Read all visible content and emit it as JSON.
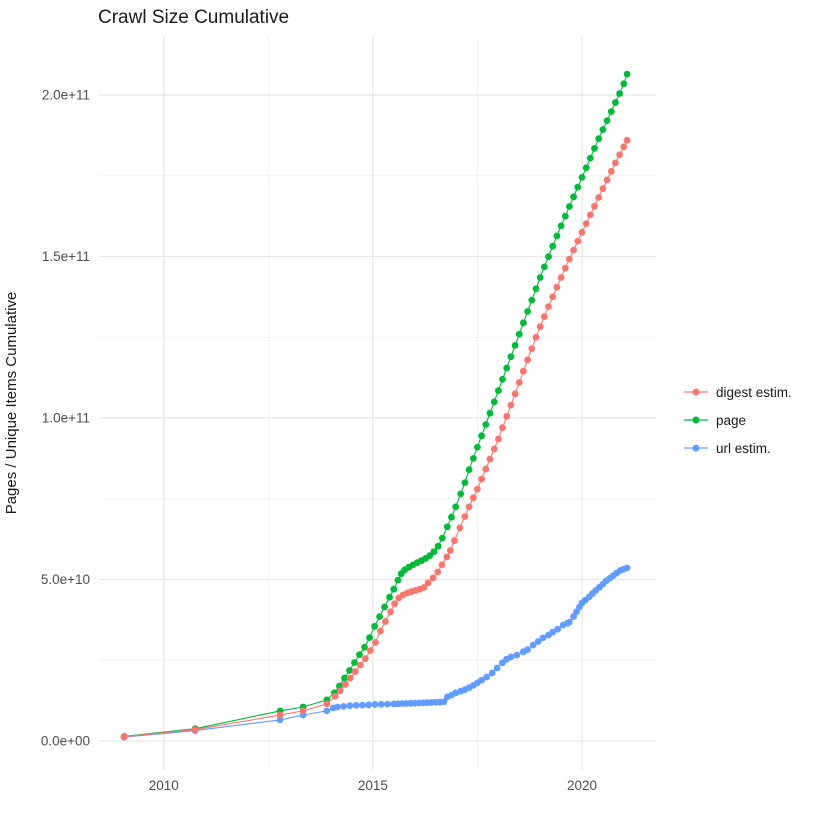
{
  "title": "Crawl Size Cumulative",
  "chart_data": {
    "type": "scatter",
    "title": "Crawl Size Cumulative",
    "xlabel": "",
    "ylabel": "Pages / Unique Items Cumulative",
    "value_unit": "1e9 (billions of pages / unique items)",
    "x_domain": [
      2008.45,
      2021.77
    ],
    "y_domain": [
      -9,
      218.3
    ],
    "x_ticks": [
      {
        "value": 2010,
        "label": "2010"
      },
      {
        "value": 2015,
        "label": "2015"
      },
      {
        "value": 2020,
        "label": "2020"
      }
    ],
    "x_minor": [
      2012.5,
      2017.5
    ],
    "y_ticks": [
      {
        "value": 0,
        "label": "0.0e+00"
      },
      {
        "value": 50,
        "label": "5.0e+10"
      },
      {
        "value": 100,
        "label": "1.0e+11"
      },
      {
        "value": 150,
        "label": "1.5e+11"
      },
      {
        "value": 200,
        "label": "2.0e+11"
      }
    ],
    "y_minor": [
      25,
      75,
      125,
      175
    ],
    "grid": {
      "major_color": "#E5E5E5",
      "minor_color": "#EFEFEF"
    },
    "legend_position": "right",
    "text_colors": {
      "title": "#1a1a1a",
      "ticks": "#4D4D4D",
      "axis_title": "#1a1a1a"
    },
    "series": [
      {
        "name": "digest estim.",
        "color": "#F8766D",
        "points": [
          [
            2009.05,
            1.3
          ],
          [
            2010.75,
            3.5
          ],
          [
            2012.78,
            8.0
          ],
          [
            2013.33,
            9.3
          ],
          [
            2013.9,
            11.5
          ],
          [
            2014.1,
            13.9
          ],
          [
            2014.22,
            15.5
          ],
          [
            2014.34,
            17.5
          ],
          [
            2014.46,
            19.5
          ],
          [
            2014.58,
            21.5
          ],
          [
            2014.7,
            23.5
          ],
          [
            2014.82,
            25.5
          ],
          [
            2014.94,
            28.0
          ],
          [
            2015.06,
            30.5
          ],
          [
            2015.18,
            34.0
          ],
          [
            2015.3,
            37.0
          ],
          [
            2015.42,
            40.0
          ],
          [
            2015.52,
            42.5
          ],
          [
            2015.62,
            44.3
          ],
          [
            2015.72,
            45.2
          ],
          [
            2015.82,
            45.8
          ],
          [
            2015.92,
            46.2
          ],
          [
            2016.02,
            46.6
          ],
          [
            2016.12,
            47.0
          ],
          [
            2016.22,
            47.5
          ],
          [
            2016.32,
            48.9
          ],
          [
            2016.44,
            50.5
          ],
          [
            2016.55,
            52.3
          ],
          [
            2016.65,
            54.5
          ],
          [
            2016.77,
            57.0
          ],
          [
            2016.85,
            59.0
          ],
          [
            2016.95,
            62.0
          ],
          [
            2017.08,
            66.0
          ],
          [
            2017.2,
            69.5
          ],
          [
            2017.3,
            72.5
          ],
          [
            2017.4,
            75.3
          ],
          [
            2017.5,
            78.0
          ],
          [
            2017.6,
            81.1
          ],
          [
            2017.7,
            84.2
          ],
          [
            2017.8,
            87.3
          ],
          [
            2017.9,
            90.4
          ],
          [
            2018.0,
            93.5
          ],
          [
            2018.1,
            97.0
          ],
          [
            2018.2,
            100.5
          ],
          [
            2018.3,
            104.0
          ],
          [
            2018.4,
            107.5
          ],
          [
            2018.5,
            111.0
          ],
          [
            2018.6,
            114.5
          ],
          [
            2018.7,
            118.0
          ],
          [
            2018.8,
            121.5
          ],
          [
            2018.9,
            125.0
          ],
          [
            2019.0,
            128.3
          ],
          [
            2019.1,
            131.4
          ],
          [
            2019.2,
            134.5
          ],
          [
            2019.3,
            137.5
          ],
          [
            2019.4,
            140.5
          ],
          [
            2019.5,
            143.5
          ],
          [
            2019.6,
            146.4
          ],
          [
            2019.7,
            149.2
          ],
          [
            2019.8,
            152.0
          ],
          [
            2019.9,
            154.8
          ],
          [
            2020.0,
            157.5
          ],
          [
            2020.1,
            160.2
          ],
          [
            2020.2,
            162.9
          ],
          [
            2020.3,
            165.6
          ],
          [
            2020.4,
            168.3
          ],
          [
            2020.5,
            171.0
          ],
          [
            2020.6,
            173.7
          ],
          [
            2020.7,
            176.4
          ],
          [
            2020.8,
            179.0
          ],
          [
            2020.9,
            181.5
          ],
          [
            2021.0,
            184.0
          ],
          [
            2021.08,
            186.0
          ]
        ]
      },
      {
        "name": "page",
        "color": "#00BA38",
        "points": [
          [
            2009.05,
            1.4
          ],
          [
            2010.75,
            3.8
          ],
          [
            2012.78,
            9.3
          ],
          [
            2013.33,
            10.5
          ],
          [
            2013.9,
            12.7
          ],
          [
            2014.08,
            14.9
          ],
          [
            2014.2,
            17.0
          ],
          [
            2014.32,
            19.5
          ],
          [
            2014.44,
            21.8
          ],
          [
            2014.56,
            24.3
          ],
          [
            2014.68,
            26.7
          ],
          [
            2014.8,
            29.0
          ],
          [
            2014.92,
            32.0
          ],
          [
            2015.04,
            35.5
          ],
          [
            2015.16,
            38.5
          ],
          [
            2015.28,
            41.5
          ],
          [
            2015.4,
            44.5
          ],
          [
            2015.5,
            47.0
          ],
          [
            2015.6,
            49.8
          ],
          [
            2015.68,
            51.8
          ],
          [
            2015.76,
            53.0
          ],
          [
            2015.86,
            53.8
          ],
          [
            2015.96,
            54.5
          ],
          [
            2016.06,
            55.2
          ],
          [
            2016.16,
            55.8
          ],
          [
            2016.26,
            56.5
          ],
          [
            2016.36,
            57.4
          ],
          [
            2016.46,
            58.6
          ],
          [
            2016.56,
            60.3
          ],
          [
            2016.66,
            62.8
          ],
          [
            2016.78,
            66.3
          ],
          [
            2016.88,
            69.3
          ],
          [
            2016.98,
            72.5
          ],
          [
            2017.1,
            76.5
          ],
          [
            2017.2,
            80.0
          ],
          [
            2017.3,
            84.0
          ],
          [
            2017.4,
            87.5
          ],
          [
            2017.5,
            91.0
          ],
          [
            2017.6,
            94.5
          ],
          [
            2017.7,
            98.0
          ],
          [
            2017.8,
            101.5
          ],
          [
            2017.9,
            105.0
          ],
          [
            2018.0,
            108.5
          ],
          [
            2018.1,
            112.0
          ],
          [
            2018.2,
            115.5
          ],
          [
            2018.3,
            119.0
          ],
          [
            2018.4,
            122.5
          ],
          [
            2018.5,
            126.0
          ],
          [
            2018.6,
            129.5
          ],
          [
            2018.7,
            133.0
          ],
          [
            2018.8,
            136.5
          ],
          [
            2018.9,
            140.0
          ],
          [
            2019.0,
            143.5
          ],
          [
            2019.1,
            146.8
          ],
          [
            2019.2,
            150.0
          ],
          [
            2019.3,
            153.2
          ],
          [
            2019.4,
            156.4
          ],
          [
            2019.5,
            159.5
          ],
          [
            2019.6,
            162.5
          ],
          [
            2019.7,
            165.5
          ],
          [
            2019.8,
            168.5
          ],
          [
            2019.9,
            171.5
          ],
          [
            2020.0,
            174.5
          ],
          [
            2020.1,
            177.5
          ],
          [
            2020.2,
            180.5
          ],
          [
            2020.3,
            183.5
          ],
          [
            2020.4,
            186.5
          ],
          [
            2020.5,
            189.3
          ],
          [
            2020.6,
            192.1
          ],
          [
            2020.7,
            194.9
          ],
          [
            2020.8,
            197.7
          ],
          [
            2020.9,
            200.5
          ],
          [
            2021.0,
            203.5
          ],
          [
            2021.08,
            206.5
          ]
        ]
      },
      {
        "name": "url estim.",
        "color": "#619CFF",
        "points": [
          [
            2009.05,
            1.2
          ],
          [
            2010.75,
            3.2
          ],
          [
            2012.78,
            6.5
          ],
          [
            2013.33,
            8.0
          ],
          [
            2013.9,
            9.3
          ],
          [
            2014.05,
            10.2
          ],
          [
            2014.15,
            10.5
          ],
          [
            2014.3,
            10.7
          ],
          [
            2014.45,
            10.9
          ],
          [
            2014.6,
            11.0
          ],
          [
            2014.75,
            11.1
          ],
          [
            2014.9,
            11.2
          ],
          [
            2015.05,
            11.3
          ],
          [
            2015.2,
            11.35
          ],
          [
            2015.35,
            11.4
          ],
          [
            2015.5,
            11.45
          ],
          [
            2015.6,
            11.5
          ],
          [
            2015.7,
            11.55
          ],
          [
            2015.8,
            11.6
          ],
          [
            2015.9,
            11.65
          ],
          [
            2016.0,
            11.7
          ],
          [
            2016.1,
            11.75
          ],
          [
            2016.2,
            11.8
          ],
          [
            2016.3,
            11.85
          ],
          [
            2016.4,
            11.9
          ],
          [
            2016.5,
            11.95
          ],
          [
            2016.6,
            12.0
          ],
          [
            2016.7,
            12.1
          ],
          [
            2016.78,
            13.6
          ],
          [
            2016.88,
            14.2
          ],
          [
            2016.98,
            14.9
          ],
          [
            2017.1,
            15.4
          ],
          [
            2017.2,
            15.9
          ],
          [
            2017.3,
            16.5
          ],
          [
            2017.4,
            17.2
          ],
          [
            2017.5,
            18.0
          ],
          [
            2017.6,
            18.8
          ],
          [
            2017.72,
            19.8
          ],
          [
            2017.85,
            21.0
          ],
          [
            2017.97,
            22.6
          ],
          [
            2018.1,
            24.2
          ],
          [
            2018.2,
            25.3
          ],
          [
            2018.3,
            26.0
          ],
          [
            2018.44,
            26.6
          ],
          [
            2018.6,
            27.6
          ],
          [
            2018.7,
            28.3
          ],
          [
            2018.83,
            29.7
          ],
          [
            2018.95,
            30.8
          ],
          [
            2019.07,
            31.9
          ],
          [
            2019.2,
            32.8
          ],
          [
            2019.3,
            33.7
          ],
          [
            2019.42,
            34.6
          ],
          [
            2019.55,
            35.9
          ],
          [
            2019.65,
            36.4
          ],
          [
            2019.7,
            36.8
          ],
          [
            2019.8,
            38.5
          ],
          [
            2019.87,
            40.0
          ],
          [
            2019.94,
            41.5
          ],
          [
            2020.0,
            42.7
          ],
          [
            2020.08,
            43.6
          ],
          [
            2020.17,
            44.6
          ],
          [
            2020.25,
            45.6
          ],
          [
            2020.33,
            46.6
          ],
          [
            2020.42,
            47.6
          ],
          [
            2020.5,
            48.6
          ],
          [
            2020.58,
            49.6
          ],
          [
            2020.67,
            50.4
          ],
          [
            2020.75,
            51.2
          ],
          [
            2020.83,
            52.0
          ],
          [
            2020.92,
            52.8
          ],
          [
            2021.0,
            53.2
          ],
          [
            2021.08,
            53.6
          ]
        ]
      }
    ]
  }
}
